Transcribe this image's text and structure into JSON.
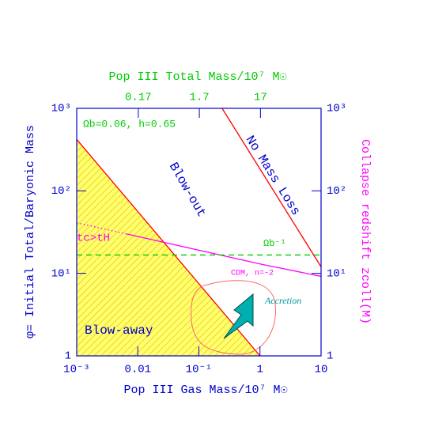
{
  "chart_data": {
    "type": "line",
    "xlabel": "Pop III Gas Mass/10⁷ M☉",
    "x2label": "Pop III Total Mass/10⁷ M☉",
    "ylabel": "φ= Initial Total/Baryonic Mass",
    "y2label": "Collapse redshift zcoll(M)",
    "xscale": "log",
    "yscale": "log",
    "xlim": [
      0.001,
      10
    ],
    "xticks": [
      {
        "value": 0.001,
        "label": "10⁻³"
      },
      0.01,
      {
        "value": 0.1,
        "label": "10⁻¹"
      },
      1,
      10
    ],
    "x2lim": [
      0.0167,
      167
    ],
    "x2ticks": [
      0.17,
      1.7,
      17
    ],
    "ylim": [
      1,
      1000
    ],
    "yticks": [
      1,
      {
        "value": 10,
        "label": "10¹"
      },
      {
        "value": 100,
        "label": "10²"
      },
      {
        "value": 1000,
        "label": "10³"
      }
    ],
    "y2lim": [
      1,
      1000
    ],
    "y2ticks": [
      1,
      {
        "value": 10,
        "label": "10¹"
      },
      {
        "value": 100,
        "label": "10²"
      },
      {
        "value": 1000,
        "label": "10³"
      }
    ],
    "axis_color": "#0000cc",
    "x2_color": "#00cc00",
    "y2_color": "#ff00ff",
    "series": [
      {
        "x": [
          0.001,
          1
        ],
        "values": [
          420,
          1
        ],
        "color": "#ff0000",
        "dash": "solid",
        "fill": "#ffff70"
      },
      {
        "x": [
          0.24,
          10
        ],
        "values": [
          1000,
          12
        ],
        "color": "#ff0000",
        "dash": "solid"
      },
      {
        "x": [
          0.001,
          0.0066
        ],
        "values": [
          41,
          30
        ],
        "color": "#ff00ff",
        "dash": "dotted"
      },
      {
        "x": [
          0.0066,
          1,
          10
        ],
        "values": [
          30,
          13,
          9.2
        ],
        "color": "#ff00ff",
        "dash": "solid"
      },
      {
        "x": [
          0.001,
          10
        ],
        "values": [
          16.7,
          16.7
        ],
        "color": "#00cc00",
        "dash": "dashed"
      }
    ],
    "annotations": {
      "params": "Ωb=0.06, h=0.65",
      "blow_out": "Blow-out",
      "no_mass_loss": "No Mass Loss",
      "blow_away": "Blow-away",
      "cooling": "tc>tH",
      "omega": "Ωb⁻¹",
      "cdm": "CDM, n=-2",
      "accretion": "Accretion"
    }
  }
}
